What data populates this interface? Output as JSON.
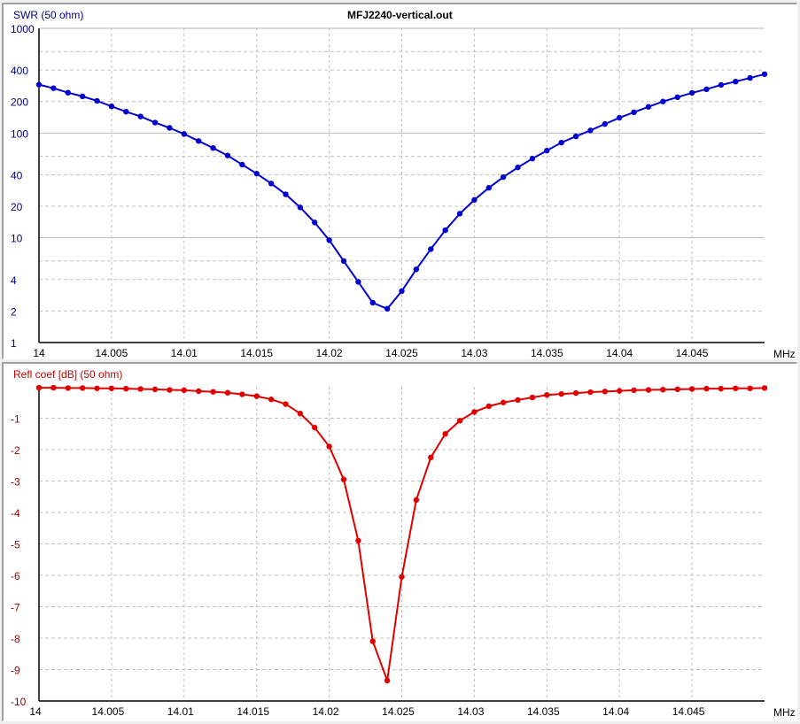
{
  "title": "MFJ2240-vertical.out",
  "x_unit": "MHz",
  "x_ticks": [
    "14",
    "14.005",
    "14.01",
    "14.015",
    "14.02",
    "14.025",
    "14.03",
    "14.035",
    "14.04",
    "14.045"
  ],
  "top_chart": {
    "ylabel": "SWR (50 ohm)",
    "y_ticks": [
      "1000",
      "400",
      "200",
      "100",
      "40",
      "20",
      "10",
      "4",
      "2",
      "1"
    ],
    "color": "#0000d0"
  },
  "bottom_chart": {
    "ylabel": "Refl coef [dB] (50 ohm)",
    "y_ticks": [
      "-1",
      "-2",
      "-3",
      "-4",
      "-5",
      "-6",
      "-7",
      "-8",
      "-9",
      "-10"
    ],
    "color": "#e00000"
  },
  "chart_data": [
    {
      "type": "line",
      "title": "MFJ2240-vertical.out",
      "xlabel": "MHz",
      "ylabel": "SWR (50 ohm)",
      "yscale": "log",
      "xlim": [
        14.0,
        14.05
      ],
      "ylim": [
        1,
        1000
      ],
      "grid": true,
      "series": [
        {
          "name": "SWR",
          "color": "#0000d0",
          "x": [
            14.0,
            14.001,
            14.002,
            14.003,
            14.004,
            14.005,
            14.006,
            14.007,
            14.008,
            14.009,
            14.01,
            14.011,
            14.012,
            14.013,
            14.014,
            14.015,
            14.016,
            14.017,
            14.018,
            14.019,
            14.02,
            14.021,
            14.022,
            14.023,
            14.024,
            14.025,
            14.026,
            14.027,
            14.028,
            14.029,
            14.03,
            14.031,
            14.032,
            14.033,
            14.034,
            14.035,
            14.036,
            14.037,
            14.038,
            14.039,
            14.04,
            14.041,
            14.042,
            14.043,
            14.044,
            14.045,
            14.046,
            14.047,
            14.048,
            14.049,
            14.05
          ],
          "values": [
            290,
            268,
            243,
            224,
            203,
            180,
            160,
            144,
            126,
            112,
            98,
            84,
            72,
            61,
            50,
            41,
            33,
            26,
            19.5,
            14,
            9.5,
            6.0,
            3.8,
            2.4,
            2.1,
            3.1,
            5.0,
            7.8,
            11.8,
            17,
            23,
            30,
            38,
            47,
            57,
            68,
            81,
            93,
            106,
            122,
            140,
            158,
            178,
            200,
            220,
            242,
            262,
            288,
            310,
            336,
            365
          ]
        }
      ]
    },
    {
      "type": "line",
      "xlabel": "MHz",
      "ylabel": "Refl coef [dB] (50 ohm)",
      "xlim": [
        14.0,
        14.05
      ],
      "ylim": [
        -10,
        0
      ],
      "grid": true,
      "series": [
        {
          "name": "Refl coef [dB]",
          "color": "#e00000",
          "x": [
            14.0,
            14.001,
            14.002,
            14.003,
            14.004,
            14.005,
            14.006,
            14.007,
            14.008,
            14.009,
            14.01,
            14.011,
            14.012,
            14.013,
            14.014,
            14.015,
            14.016,
            14.017,
            14.018,
            14.019,
            14.02,
            14.021,
            14.022,
            14.023,
            14.024,
            14.025,
            14.026,
            14.027,
            14.028,
            14.029,
            14.03,
            14.031,
            14.032,
            14.033,
            14.034,
            14.035,
            14.036,
            14.037,
            14.038,
            14.039,
            14.04,
            14.041,
            14.042,
            14.043,
            14.044,
            14.045,
            14.046,
            14.047,
            14.048,
            14.049,
            14.05
          ],
          "values": [
            -0.03,
            -0.03,
            -0.04,
            -0.04,
            -0.05,
            -0.05,
            -0.06,
            -0.07,
            -0.08,
            -0.1,
            -0.11,
            -0.14,
            -0.16,
            -0.19,
            -0.24,
            -0.3,
            -0.4,
            -0.55,
            -0.85,
            -1.3,
            -1.9,
            -2.95,
            -4.9,
            -8.1,
            -9.35,
            -6.05,
            -3.6,
            -2.25,
            -1.5,
            -1.08,
            -0.8,
            -0.62,
            -0.5,
            -0.42,
            -0.34,
            -0.26,
            -0.23,
            -0.2,
            -0.17,
            -0.15,
            -0.13,
            -0.11,
            -0.1,
            -0.09,
            -0.08,
            -0.07,
            -0.06,
            -0.06,
            -0.05,
            -0.05,
            -0.04
          ]
        }
      ]
    }
  ]
}
